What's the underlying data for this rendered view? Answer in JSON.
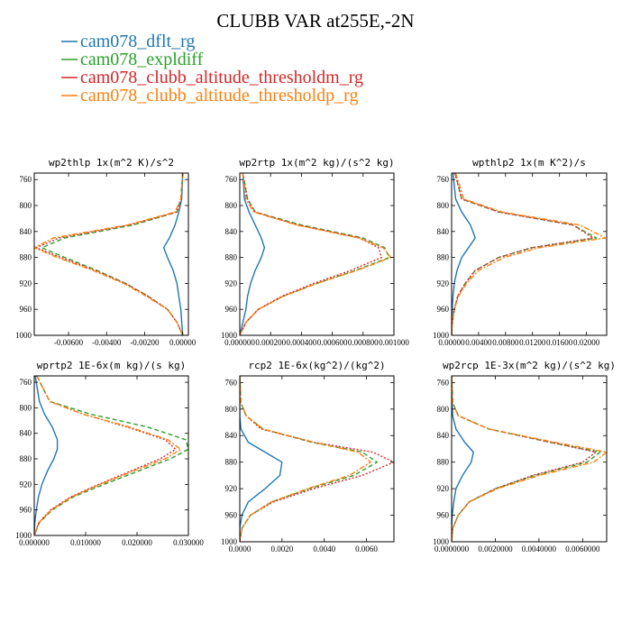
{
  "figure_title": "CLUBB VAR at255E,-2N",
  "colors": {
    "cam078_dflt_rg": "#1f77b4",
    "cam078_expldiff": "#2ca02c",
    "cam078_clubb_altitude_thresholdm_rg": "#d62728",
    "cam078_clubb_altitude_thresholdp_rg": "#ff7f0e"
  },
  "legend": [
    {
      "name": "cam078_dflt_rg",
      "color": "#1f77b4",
      "dash": "solid"
    },
    {
      "name": "cam078_expldiff",
      "color": "#2ca02c",
      "dash": "dashed"
    },
    {
      "name": "cam078_clubb_altitude_thresholdm_rg",
      "color": "#d62728",
      "dash": "dotted"
    },
    {
      "name": "cam078_clubb_altitude_thresholdp_rg",
      "color": "#ff7f0e",
      "dash": "dashdot"
    }
  ],
  "chart_data": [
    {
      "type": "line",
      "title": "wp2thlp  1x(m^2 K)/s^2",
      "xlim": [
        -0.0078,
        0.0003
      ],
      "ylim": [
        1000,
        750
      ],
      "xticks": [
        -0.006,
        -0.004,
        -0.002,
        0.0
      ],
      "xtick_labels": [
        "-0.00600",
        "-0.00400",
        "-0.00200",
        "0.00000"
      ],
      "yticks": [
        760,
        800,
        840,
        880,
        920,
        960,
        1000
      ],
      "y": [
        750,
        790,
        810,
        830,
        850,
        865,
        880,
        900,
        920,
        940,
        960,
        980,
        1000
      ],
      "series": [
        {
          "name": "cam078_dflt_rg",
          "values": [
            0.0,
            -5e-05,
            -0.0002,
            -0.0004,
            -0.0007,
            -0.001,
            -0.0008,
            -0.0005,
            -0.0003,
            -0.0002,
            -0.0001,
            -5e-05,
            0.0
          ]
        },
        {
          "name": "cam078_expldiff",
          "values": [
            0.0,
            -0.0001,
            -0.0003,
            -0.0026,
            -0.0062,
            -0.0074,
            -0.0062,
            -0.0045,
            -0.003,
            -0.0018,
            -0.0008,
            -0.0003,
            0.0
          ]
        },
        {
          "name": "cam078_clubb_altitude_thresholdm_rg",
          "values": [
            0.0,
            -0.0001,
            -0.0003,
            -0.0028,
            -0.0065,
            -0.0077,
            -0.0064,
            -0.0046,
            -0.003,
            -0.0018,
            -0.0008,
            -0.0003,
            0.0
          ]
        },
        {
          "name": "cam078_clubb_altitude_thresholdp_rg",
          "values": [
            0.0,
            -0.0001,
            -0.0004,
            -0.0029,
            -0.0068,
            -0.0078,
            -0.0066,
            -0.0047,
            -0.0031,
            -0.0019,
            -0.0008,
            -0.0003,
            0.0
          ]
        }
      ]
    },
    {
      "type": "line",
      "title": "wp2rtp  1x(m^2 kg)/(s^2 kg)",
      "xlim": [
        0.0,
        0.001
      ],
      "ylim": [
        1000,
        750
      ],
      "xticks": [
        0.0,
        0.0002,
        0.0004,
        0.0006,
        0.0008,
        0.001
      ],
      "xtick_labels": [
        "0.000000",
        "0.000200",
        "0.000400",
        "0.000600",
        "0.000800",
        "0.001000"
      ],
      "yticks": [
        760,
        800,
        840,
        880,
        920,
        960,
        1000
      ],
      "y": [
        750,
        790,
        810,
        830,
        850,
        865,
        880,
        900,
        920,
        940,
        960,
        980,
        1000
      ],
      "series": [
        {
          "name": "cam078_dflt_rg",
          "values": [
            2e-05,
            3e-05,
            6e-05,
            0.0001,
            0.00014,
            0.00016,
            0.00014,
            0.0001,
            7e-05,
            5e-05,
            4e-05,
            2e-05,
            0.0
          ]
        },
        {
          "name": "cam078_expldiff",
          "values": [
            2e-05,
            5e-05,
            0.0001,
            0.0004,
            0.0008,
            0.00094,
            0.00097,
            0.00075,
            0.0005,
            0.00028,
            0.00012,
            4e-05,
            0.0
          ]
        },
        {
          "name": "cam078_clubb_altitude_thresholdm_rg",
          "values": [
            2e-05,
            5e-05,
            0.0001,
            0.00038,
            0.00078,
            0.0009,
            0.00092,
            0.00072,
            0.00048,
            0.00027,
            0.00012,
            4e-05,
            0.0
          ]
        },
        {
          "name": "cam078_clubb_altitude_thresholdp_rg",
          "values": [
            2e-05,
            4e-05,
            9e-05,
            0.00037,
            0.00077,
            0.00093,
            0.00098,
            0.00076,
            0.0005,
            0.00028,
            0.00012,
            4e-05,
            0.0
          ]
        }
      ]
    },
    {
      "type": "line",
      "title": "wpthlp2  1x(m K^2)/s",
      "xlim": [
        0.0,
        0.023
      ],
      "ylim": [
        1000,
        750
      ],
      "xticks": [
        0.0,
        0.004,
        0.008,
        0.012,
        0.016,
        0.02
      ],
      "xtick_labels": [
        "0.00000",
        "0.00400",
        "0.00800",
        "0.01200",
        "0.01600",
        "0.02000"
      ],
      "yticks": [
        760,
        800,
        840,
        880,
        920,
        960,
        1000
      ],
      "y": [
        750,
        790,
        810,
        830,
        850,
        865,
        880,
        900,
        920,
        940,
        960,
        980,
        1000
      ],
      "series": [
        {
          "name": "cam078_dflt_rg",
          "values": [
            0.0002,
            0.0006,
            0.0015,
            0.0028,
            0.0035,
            0.0025,
            0.0015,
            0.0008,
            0.0004,
            0.0002,
            0.0001,
            5e-05,
            0.0
          ]
        },
        {
          "name": "cam078_expldiff",
          "values": [
            0.0005,
            0.0015,
            0.007,
            0.018,
            0.0215,
            0.012,
            0.007,
            0.0035,
            0.002,
            0.0009,
            0.0004,
            0.0001,
            0.0
          ]
        },
        {
          "name": "cam078_clubb_altitude_thresholdm_rg",
          "values": [
            0.0005,
            0.0015,
            0.007,
            0.018,
            0.021,
            0.0118,
            0.007,
            0.0035,
            0.002,
            0.0009,
            0.0004,
            0.0001,
            0.0
          ]
        },
        {
          "name": "cam078_clubb_altitude_thresholdp_rg",
          "values": [
            0.0006,
            0.0018,
            0.0075,
            0.019,
            0.0228,
            0.013,
            0.0078,
            0.004,
            0.0022,
            0.001,
            0.0004,
            0.0001,
            0.0
          ]
        }
      ]
    },
    {
      "type": "line",
      "title": "wprtp2  1E-6x(m kg)/(s kg)",
      "xlim": [
        0.0,
        0.03
      ],
      "ylim": [
        1000,
        750
      ],
      "xticks": [
        0.0,
        0.01,
        0.02,
        0.03
      ],
      "xtick_labels": [
        "0.000000",
        "0.010000",
        "0.020000",
        "0.030000"
      ],
      "yticks": [
        760,
        800,
        840,
        880,
        920,
        960,
        1000
      ],
      "y": [
        750,
        790,
        810,
        830,
        850,
        865,
        880,
        900,
        920,
        940,
        960,
        980,
        1000
      ],
      "series": [
        {
          "name": "cam078_dflt_rg",
          "values": [
            0.0002,
            0.001,
            0.002,
            0.0035,
            0.0045,
            0.0045,
            0.0038,
            0.0025,
            0.0015,
            0.0008,
            0.0004,
            0.0001,
            0.0
          ]
        },
        {
          "name": "cam078_expldiff",
          "values": [
            0.0005,
            0.003,
            0.011,
            0.022,
            0.0295,
            0.03,
            0.0265,
            0.02,
            0.0135,
            0.0075,
            0.0035,
            0.001,
            0.0
          ]
        },
        {
          "name": "cam078_clubb_altitude_thresholdm_rg",
          "values": [
            0.0005,
            0.003,
            0.0095,
            0.018,
            0.0255,
            0.0275,
            0.0245,
            0.0185,
            0.0125,
            0.007,
            0.0032,
            0.0009,
            0.0
          ]
        },
        {
          "name": "cam078_clubb_altitude_thresholdp_rg",
          "values": [
            0.0005,
            0.003,
            0.0095,
            0.0185,
            0.026,
            0.0285,
            0.0255,
            0.019,
            0.0128,
            0.0072,
            0.0033,
            0.0009,
            0.0
          ]
        }
      ]
    },
    {
      "type": "line",
      "title": "rcp2  1E-6x(kg^2)/(kg^2)",
      "xlim": [
        0.0,
        0.0073
      ],
      "ylim": [
        1000,
        750
      ],
      "xticks": [
        0.0,
        0.002,
        0.004,
        0.006
      ],
      "xtick_labels": [
        "0.0000",
        "0.0020",
        "0.0040",
        "0.0060"
      ],
      "yticks": [
        760,
        800,
        840,
        880,
        920,
        960,
        1000
      ],
      "y": [
        750,
        790,
        810,
        830,
        850,
        865,
        880,
        900,
        920,
        940,
        960,
        980,
        1000
      ],
      "series": [
        {
          "name": "cam078_dflt_rg",
          "values": [
            0.0,
            0.0,
            0.0,
            5e-05,
            0.0004,
            0.0012,
            0.002,
            0.0019,
            0.0012,
            0.0004,
            0.0001,
            0.0,
            0.0
          ]
        },
        {
          "name": "cam078_expldiff",
          "values": [
            0.0,
            5e-05,
            0.0003,
            0.0011,
            0.0034,
            0.0058,
            0.0065,
            0.0054,
            0.0033,
            0.0015,
            0.0005,
            0.0001,
            0.0
          ]
        },
        {
          "name": "cam078_clubb_altitude_thresholdm_rg",
          "values": [
            0.0,
            5e-05,
            0.0003,
            0.001,
            0.0035,
            0.0063,
            0.0073,
            0.0058,
            0.0035,
            0.0016,
            0.0005,
            0.0001,
            0.0
          ]
        },
        {
          "name": "cam078_clubb_altitude_thresholdp_rg",
          "values": [
            0.0,
            5e-05,
            0.0003,
            0.0011,
            0.0035,
            0.0056,
            0.0062,
            0.0052,
            0.0032,
            0.0015,
            0.0005,
            0.0001,
            0.0
          ]
        }
      ]
    },
    {
      "type": "line",
      "title": "wp2rcp  1E-3x(m^2 kg)/(s^2 kg)",
      "xlim": [
        0.0,
        0.0071
      ],
      "ylim": [
        1000,
        750
      ],
      "xticks": [
        0.0,
        0.002,
        0.004,
        0.006
      ],
      "xtick_labels": [
        "0.0000000",
        "0.0020000",
        "0.0040000",
        "0.0060000"
      ],
      "yticks": [
        760,
        800,
        840,
        880,
        920,
        960,
        1000
      ],
      "y": [
        750,
        790,
        810,
        830,
        850,
        865,
        880,
        900,
        920,
        940,
        960,
        980,
        1000
      ],
      "series": [
        {
          "name": "cam078_dflt_rg",
          "values": [
            0.0,
            2e-05,
            5e-05,
            0.0002,
            0.0006,
            0.001,
            0.0009,
            0.0005,
            0.0002,
            0.0001,
            3e-05,
            0.0,
            0.0
          ]
        },
        {
          "name": "cam078_expldiff",
          "values": [
            0.0,
            5e-05,
            0.0003,
            0.0017,
            0.0045,
            0.0068,
            0.0062,
            0.0038,
            0.002,
            0.0008,
            0.0003,
            5e-05,
            0.0
          ]
        },
        {
          "name": "cam078_clubb_altitude_thresholdm_rg",
          "values": [
            0.0,
            5e-05,
            0.0003,
            0.0017,
            0.0045,
            0.0066,
            0.006,
            0.0037,
            0.002,
            0.0008,
            0.0003,
            5e-05,
            0.0
          ]
        },
        {
          "name": "cam078_clubb_altitude_thresholdp_rg",
          "values": [
            0.0,
            5e-05,
            0.0003,
            0.0017,
            0.0047,
            0.0071,
            0.0065,
            0.004,
            0.0021,
            0.0008,
            0.0003,
            5e-05,
            0.0
          ]
        }
      ]
    }
  ]
}
